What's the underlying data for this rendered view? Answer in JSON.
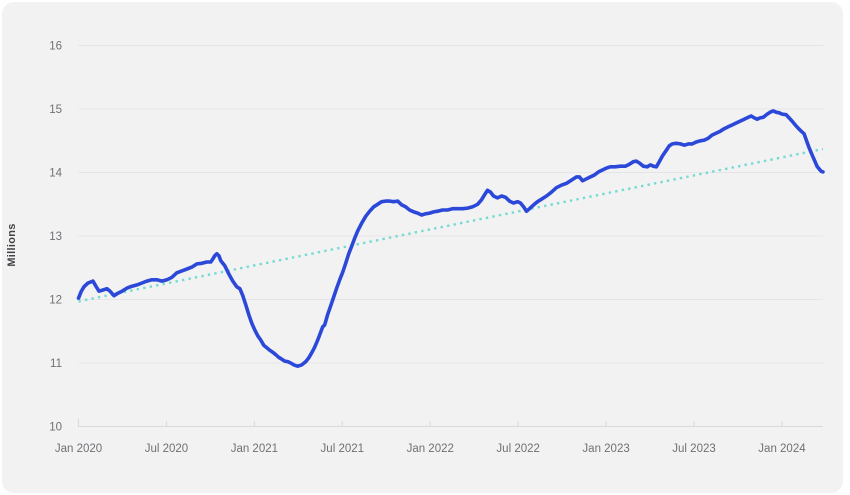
{
  "card": {
    "background": "#f2f2f3"
  },
  "chart_data": {
    "type": "line",
    "title": "",
    "xlabel": "",
    "ylabel": "Millions",
    "x_unit": "months since Jan 2020",
    "x_range": [
      0,
      50.8
    ],
    "y_range": [
      10,
      16
    ],
    "y_ticks": [
      10,
      11,
      12,
      13,
      14,
      15,
      16
    ],
    "x_ticks": [
      {
        "t": 0,
        "label": "Jan 2020"
      },
      {
        "t": 6,
        "label": "Jul 2020"
      },
      {
        "t": 12,
        "label": "Jan 2021"
      },
      {
        "t": 18,
        "label": "Jul 2021"
      },
      {
        "t": 24,
        "label": "Jan 2022"
      },
      {
        "t": 30,
        "label": "Jul 2022"
      },
      {
        "t": 36,
        "label": "Jan 2023"
      },
      {
        "t": 42,
        "label": "Jul 2023"
      },
      {
        "t": 48,
        "label": "Jan 2024"
      }
    ],
    "grid": "horizontal",
    "legend": "none",
    "colors": {
      "series": "#2b48d9",
      "trend": "#74dad2",
      "gridline": "#e5e5e7",
      "axis": "#d9d9db",
      "tick_label": "#6e7174",
      "axis_title": "#404346"
    },
    "series": [
      {
        "name": "value-millions",
        "color": "#2b48d9",
        "style": "solid",
        "width": 3.6,
        "points": [
          [
            0,
            12.02
          ],
          [
            0.17,
            12.12
          ],
          [
            0.37,
            12.2
          ],
          [
            0.65,
            12.26
          ],
          [
            0.99,
            12.29
          ],
          [
            1.19,
            12.21
          ],
          [
            1.4,
            12.13
          ],
          [
            1.67,
            12.15
          ],
          [
            1.94,
            12.17
          ],
          [
            2.15,
            12.13
          ],
          [
            2.42,
            12.06
          ],
          [
            2.69,
            12.1
          ],
          [
            2.97,
            12.13
          ],
          [
            3.31,
            12.18
          ],
          [
            3.65,
            12.21
          ],
          [
            3.99,
            12.23
          ],
          [
            4.33,
            12.26
          ],
          [
            4.67,
            12.29
          ],
          [
            5.01,
            12.31
          ],
          [
            5.35,
            12.31
          ],
          [
            5.69,
            12.29
          ],
          [
            6.03,
            12.31
          ],
          [
            6.37,
            12.35
          ],
          [
            6.71,
            12.42
          ],
          [
            7.05,
            12.45
          ],
          [
            7.4,
            12.48
          ],
          [
            7.74,
            12.51
          ],
          [
            8.08,
            12.56
          ],
          [
            8.42,
            12.57
          ],
          [
            8.76,
            12.59
          ],
          [
            9.03,
            12.59
          ],
          [
            9.17,
            12.64
          ],
          [
            9.3,
            12.69
          ],
          [
            9.44,
            12.72
          ],
          [
            9.58,
            12.69
          ],
          [
            9.71,
            12.61
          ],
          [
            9.98,
            12.53
          ],
          [
            10.26,
            12.4
          ],
          [
            10.53,
            12.29
          ],
          [
            10.8,
            12.2
          ],
          [
            11.01,
            12.17
          ],
          [
            11.21,
            12.06
          ],
          [
            11.42,
            11.91
          ],
          [
            11.62,
            11.76
          ],
          [
            11.82,
            11.63
          ],
          [
            12.03,
            11.52
          ],
          [
            12.23,
            11.43
          ],
          [
            12.44,
            11.36
          ],
          [
            12.64,
            11.28
          ],
          [
            12.85,
            11.24
          ],
          [
            13.05,
            11.2
          ],
          [
            13.25,
            11.17
          ],
          [
            13.46,
            11.13
          ],
          [
            13.66,
            11.09
          ],
          [
            13.87,
            11.06
          ],
          [
            14.07,
            11.03
          ],
          [
            14.28,
            11.02
          ],
          [
            14.48,
            11.0
          ],
          [
            14.69,
            10.97
          ],
          [
            14.96,
            10.95
          ],
          [
            15.23,
            10.97
          ],
          [
            15.5,
            11.02
          ],
          [
            15.71,
            11.08
          ],
          [
            15.91,
            11.16
          ],
          [
            16.12,
            11.25
          ],
          [
            16.32,
            11.36
          ],
          [
            16.53,
            11.49
          ],
          [
            16.66,
            11.57
          ],
          [
            16.8,
            11.6
          ],
          [
            17.0,
            11.76
          ],
          [
            17.21,
            11.9
          ],
          [
            17.41,
            12.04
          ],
          [
            17.62,
            12.18
          ],
          [
            17.82,
            12.31
          ],
          [
            18.03,
            12.43
          ],
          [
            18.23,
            12.57
          ],
          [
            18.44,
            12.72
          ],
          [
            18.64,
            12.84
          ],
          [
            18.85,
            12.97
          ],
          [
            19.05,
            13.08
          ],
          [
            19.32,
            13.2
          ],
          [
            19.6,
            13.31
          ],
          [
            19.87,
            13.39
          ],
          [
            20.14,
            13.46
          ],
          [
            20.41,
            13.5
          ],
          [
            20.69,
            13.54
          ],
          [
            20.96,
            13.55
          ],
          [
            21.23,
            13.55
          ],
          [
            21.5,
            13.54
          ],
          [
            21.78,
            13.55
          ],
          [
            22.05,
            13.49
          ],
          [
            22.32,
            13.46
          ],
          [
            22.59,
            13.41
          ],
          [
            22.87,
            13.38
          ],
          [
            23.14,
            13.36
          ],
          [
            23.41,
            13.33
          ],
          [
            23.68,
            13.35
          ],
          [
            23.96,
            13.36
          ],
          [
            24.23,
            13.38
          ],
          [
            24.5,
            13.39
          ],
          [
            24.84,
            13.41
          ],
          [
            25.18,
            13.41
          ],
          [
            25.52,
            13.43
          ],
          [
            25.86,
            13.43
          ],
          [
            26.21,
            13.43
          ],
          [
            26.55,
            13.44
          ],
          [
            26.89,
            13.46
          ],
          [
            27.23,
            13.5
          ],
          [
            27.5,
            13.57
          ],
          [
            27.71,
            13.65
          ],
          [
            27.91,
            13.72
          ],
          [
            28.12,
            13.69
          ],
          [
            28.32,
            13.63
          ],
          [
            28.59,
            13.6
          ],
          [
            28.87,
            13.63
          ],
          [
            29.14,
            13.61
          ],
          [
            29.41,
            13.55
          ],
          [
            29.68,
            13.52
          ],
          [
            29.96,
            13.54
          ],
          [
            30.16,
            13.52
          ],
          [
            30.37,
            13.46
          ],
          [
            30.57,
            13.39
          ],
          [
            30.77,
            13.43
          ],
          [
            31.05,
            13.49
          ],
          [
            31.32,
            13.54
          ],
          [
            31.59,
            13.58
          ],
          [
            31.93,
            13.63
          ],
          [
            32.27,
            13.69
          ],
          [
            32.61,
            13.76
          ],
          [
            32.95,
            13.8
          ],
          [
            33.3,
            13.83
          ],
          [
            33.64,
            13.88
          ],
          [
            33.98,
            13.93
          ],
          [
            34.18,
            13.93
          ],
          [
            34.39,
            13.87
          ],
          [
            34.66,
            13.9
          ],
          [
            34.93,
            13.93
          ],
          [
            35.2,
            13.96
          ],
          [
            35.48,
            14.01
          ],
          [
            35.75,
            14.04
          ],
          [
            36.02,
            14.07
          ],
          [
            36.29,
            14.09
          ],
          [
            36.63,
            14.09
          ],
          [
            36.97,
            14.1
          ],
          [
            37.31,
            14.1
          ],
          [
            37.59,
            14.13
          ],
          [
            37.86,
            14.17
          ],
          [
            38.06,
            14.18
          ],
          [
            38.27,
            14.15
          ],
          [
            38.54,
            14.1
          ],
          [
            38.81,
            14.09
          ],
          [
            39.02,
            14.12
          ],
          [
            39.22,
            14.1
          ],
          [
            39.43,
            14.09
          ],
          [
            39.63,
            14.17
          ],
          [
            39.84,
            14.26
          ],
          [
            40.11,
            14.35
          ],
          [
            40.31,
            14.42
          ],
          [
            40.52,
            14.45
          ],
          [
            40.79,
            14.46
          ],
          [
            41.06,
            14.45
          ],
          [
            41.34,
            14.43
          ],
          [
            41.61,
            14.45
          ],
          [
            41.88,
            14.45
          ],
          [
            42.15,
            14.48
          ],
          [
            42.43,
            14.5
          ],
          [
            42.7,
            14.51
          ],
          [
            42.97,
            14.54
          ],
          [
            43.24,
            14.59
          ],
          [
            43.52,
            14.62
          ],
          [
            43.79,
            14.65
          ],
          [
            44.06,
            14.69
          ],
          [
            44.33,
            14.72
          ],
          [
            44.61,
            14.75
          ],
          [
            44.88,
            14.78
          ],
          [
            45.15,
            14.81
          ],
          [
            45.42,
            14.84
          ],
          [
            45.7,
            14.87
          ],
          [
            45.9,
            14.89
          ],
          [
            46.11,
            14.86
          ],
          [
            46.31,
            14.84
          ],
          [
            46.51,
            14.86
          ],
          [
            46.72,
            14.87
          ],
          [
            46.99,
            14.92
          ],
          [
            47.19,
            14.95
          ],
          [
            47.4,
            14.97
          ],
          [
            47.6,
            14.95
          ],
          [
            47.81,
            14.94
          ],
          [
            48.01,
            14.92
          ],
          [
            48.28,
            14.91
          ],
          [
            48.49,
            14.86
          ],
          [
            48.69,
            14.81
          ],
          [
            48.9,
            14.75
          ],
          [
            49.1,
            14.7
          ],
          [
            49.31,
            14.65
          ],
          [
            49.51,
            14.61
          ],
          [
            49.71,
            14.48
          ],
          [
            49.85,
            14.39
          ],
          [
            50.05,
            14.28
          ],
          [
            50.26,
            14.17
          ],
          [
            50.39,
            14.1
          ],
          [
            50.53,
            14.06
          ],
          [
            50.67,
            14.02
          ],
          [
            50.8,
            14.01
          ]
        ]
      },
      {
        "name": "linear-trend",
        "color": "#74dad2",
        "style": "dotted",
        "width": 2.4,
        "points": [
          [
            0,
            11.97
          ],
          [
            50.8,
            14.37
          ]
        ]
      }
    ]
  }
}
